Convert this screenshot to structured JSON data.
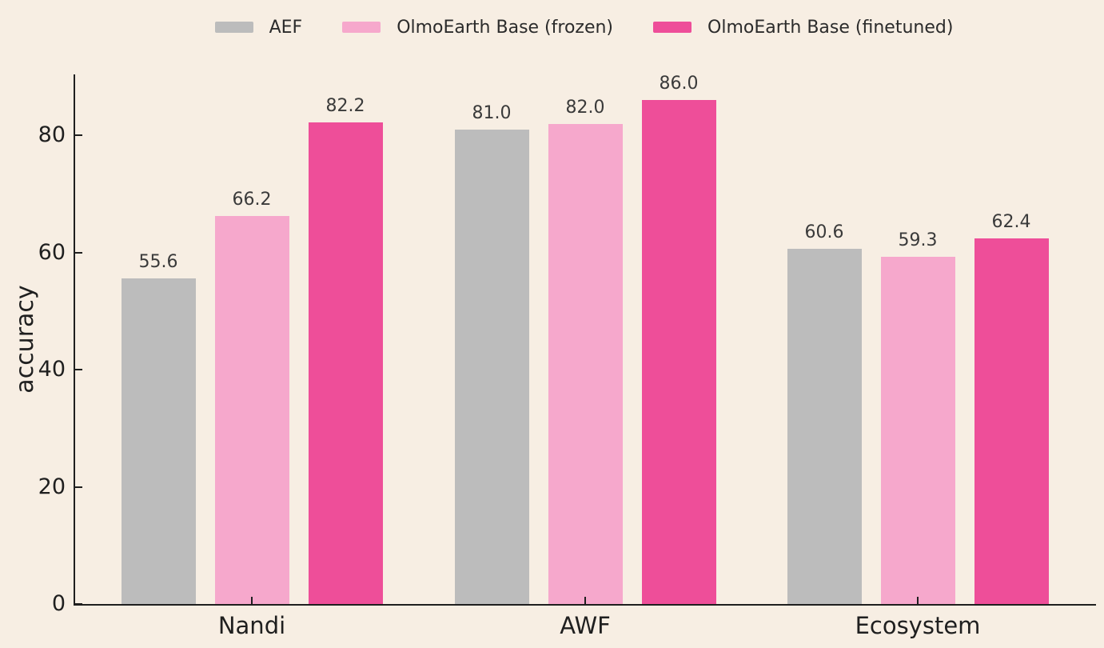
{
  "chart_data": {
    "type": "bar",
    "title": "",
    "xlabel": "",
    "ylabel": "accuracy",
    "categories": [
      "Nandi",
      "AWF",
      "Ecosystem"
    ],
    "series": [
      {
        "name": "AEF",
        "color": "#BCBCBC",
        "values": [
          55.6,
          81.0,
          60.6
        ]
      },
      {
        "name": "OlmoEarth Base (frozen)",
        "color": "#F6A8CC",
        "values": [
          66.2,
          82.0,
          59.3
        ]
      },
      {
        "name": "OlmoEarth Base (finetuned)",
        "color": "#EE4E99",
        "values": [
          82.2,
          86.0,
          62.4
        ]
      }
    ],
    "yticks": [
      0,
      20,
      40,
      60,
      80
    ],
    "ylim": [
      0,
      90.4
    ],
    "value_labels": "one_decimal",
    "legend_position": "top",
    "grid": false,
    "colors": {
      "background": "#F7EEE3",
      "axis": "#1F1F1F",
      "text": "#2B2B2B"
    }
  }
}
